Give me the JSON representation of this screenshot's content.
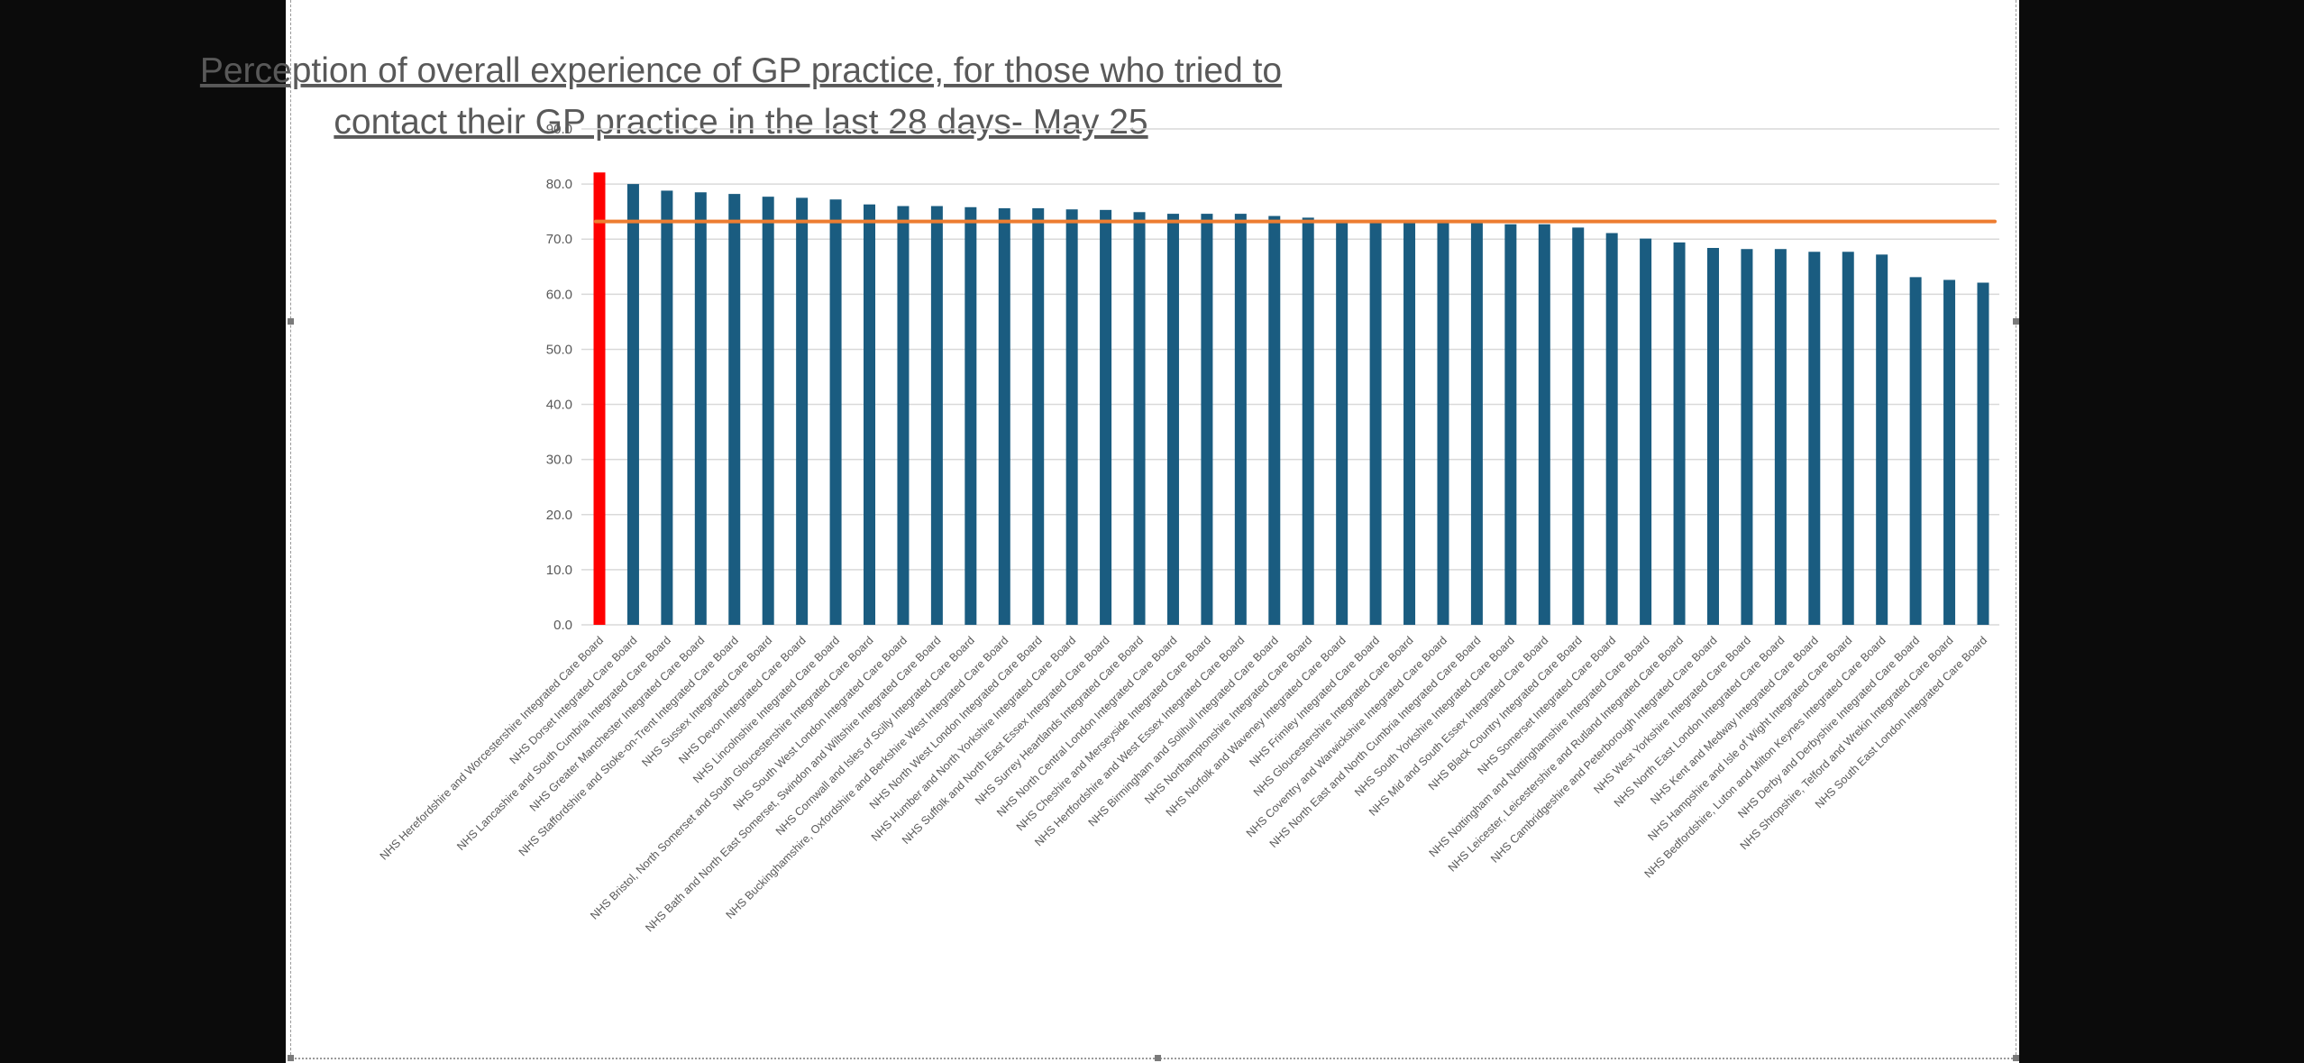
{
  "chart_data": {
    "type": "bar",
    "title": "Perception of overall experience of GP practice, for those who tried to contact their GP practice in the last 28 days- May 25",
    "title_lines": [
      "Perception of overall experience of GP practice, for those who tried to",
      "contact their GP practice in the last 28 days- May 25"
    ],
    "xlabel": "",
    "ylabel": "",
    "ylim": [
      0,
      90
    ],
    "yticks": [
      "0.0",
      "10.0",
      "20.0",
      "30.0",
      "40.0",
      "50.0",
      "60.0",
      "70.0",
      "80.0",
      "90.0"
    ],
    "grid": true,
    "legend": "none",
    "colors": {
      "bar": "#1a5c80",
      "highlight": "#ff0000",
      "average_line": "#ed7d31",
      "grid": "#d9d9d9",
      "text": "#595959"
    },
    "highlight_index": 0,
    "average_line_value": 73.2,
    "categories": [
      "NHS Herefordshire and Worcestershire Integrated Care Board",
      "NHS Dorset Integrated Care Board",
      "NHS Lancashire and South Cumbria Integrated Care Board",
      "NHS Greater Manchester Integrated Care Board",
      "NHS Staffordshire and Stoke-on-Trent Integrated Care Board",
      "NHS Sussex Integrated Care Board",
      "NHS Devon Integrated Care Board",
      "NHS Lincolnshire Integrated Care Board",
      "NHS Bristol, North Somerset and South Gloucestershire Integrated Care Board",
      "NHS South West London Integrated Care Board",
      "NHS Bath and North East Somerset, Swindon and Wiltshire Integrated Care Board",
      "NHS Cornwall and Isles of Scilly Integrated Care Board",
      "NHS Buckinghamshire, Oxfordshire and Berkshire West Integrated Care Board",
      "NHS North West London Integrated Care Board",
      "NHS Humber and North Yorkshire Integrated Care Board",
      "NHS Suffolk and North East Essex Integrated Care Board",
      "NHS Surrey Heartlands Integrated Care Board",
      "NHS North Central London Integrated Care Board",
      "NHS Cheshire and Merseyside Integrated Care Board",
      "NHS Hertfordshire and West Essex Integrated Care Board",
      "NHS Birmingham and Solihull Integrated Care Board",
      "NHS Northamptonshire Integrated Care Board",
      "NHS Norfolk and Waveney Integrated Care Board",
      "NHS Frimley Integrated Care Board",
      "NHS Gloucestershire Integrated Care Board",
      "NHS Coventry and Warwickshire Integrated Care Board",
      "NHS North East and North Cumbria Integrated Care Board",
      "NHS South Yorkshire Integrated Care Board",
      "NHS Mid and South Essex Integrated Care Board",
      "NHS Black Country Integrated Care Board",
      "NHS Somerset Integrated Care Board",
      "NHS Nottingham and Nottinghamshire Integrated Care Board",
      "NHS Leicester, Leicestershire and Rutland Integrated Care Board",
      "NHS Cambridgeshire and Peterborough Integrated Care Board",
      "NHS West Yorkshire Integrated Care Board",
      "NHS North East London Integrated Care Board",
      "NHS Kent and Medway Integrated Care Board",
      "NHS Hampshire and Isle of Wight Integrated Care Board",
      "NHS Bedfordshire, Luton and Milton Keynes Integrated Care Board",
      "NHS Derby and Derbyshire Integrated Care Board",
      "NHS Shropshire, Telford and Wrekin Integrated Care Board",
      "NHS South East London Integrated Care Board"
    ],
    "values": [
      82.1,
      80.0,
      78.8,
      78.5,
      78.2,
      77.7,
      77.5,
      77.2,
      76.3,
      76.0,
      76.0,
      75.8,
      75.6,
      75.6,
      75.4,
      75.3,
      74.9,
      74.6,
      74.6,
      74.6,
      74.2,
      73.9,
      73.2,
      73.2,
      73.1,
      73.0,
      73.0,
      72.7,
      72.7,
      72.1,
      71.1,
      70.1,
      69.4,
      68.4,
      68.2,
      68.2,
      67.7,
      67.7,
      67.2,
      63.1,
      62.6,
      62.1
    ]
  }
}
